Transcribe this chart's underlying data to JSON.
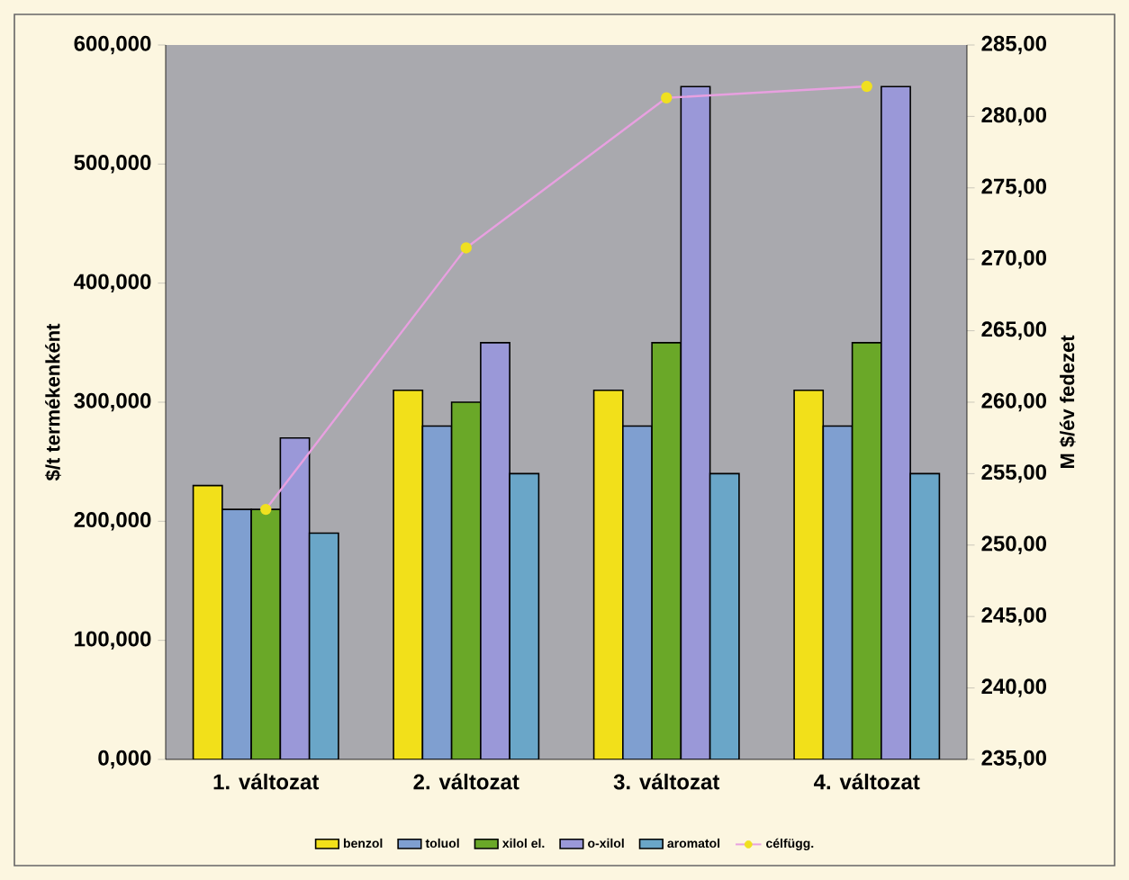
{
  "chart_data": {
    "type": "bar",
    "ylabel": "$/t termékenként",
    "y2label": "M $/év fedezet",
    "categories": [
      "1. változat",
      "2. változat",
      "3. változat",
      "4. változat"
    ],
    "series": [
      {
        "name": "benzol",
        "color": "#f2e01a",
        "values": [
          230,
          310,
          310,
          310
        ]
      },
      {
        "name": "toluol",
        "color": "#7f9fd0",
        "values": [
          210,
          280,
          280,
          280
        ]
      },
      {
        "name": "xilol el.",
        "color": "#6aa828",
        "values": [
          210,
          300,
          350,
          350
        ]
      },
      {
        "name": "o-xilol",
        "color": "#9a98d8",
        "values": [
          270,
          350,
          565,
          565
        ]
      },
      {
        "name": "aromatol",
        "color": "#6aa6c8",
        "values": [
          190,
          240,
          240,
          240
        ]
      },
      {
        "name": "célfügg.",
        "color": "#e8a0e0",
        "type": "line",
        "axis": "y2",
        "values": [
          252.5,
          270.8,
          281.3,
          282.1
        ]
      }
    ],
    "ylim": [
      0,
      600
    ],
    "yticks": [
      {
        "value": 0,
        "label": "0,000"
      },
      {
        "value": 100,
        "label": "100,000"
      },
      {
        "value": 200,
        "label": "200,000"
      },
      {
        "value": 300,
        "label": "300,000"
      },
      {
        "value": 400,
        "label": "400,000"
      },
      {
        "value": 500,
        "label": "500,000"
      },
      {
        "value": 600,
        "label": "600,000"
      }
    ],
    "y2lim": [
      235,
      285
    ],
    "y2ticks": [
      {
        "value": 235,
        "label": "235,00"
      },
      {
        "value": 240,
        "label": "240,00"
      },
      {
        "value": 245,
        "label": "245,00"
      },
      {
        "value": 250,
        "label": "250,00"
      },
      {
        "value": 255,
        "label": "255,00"
      },
      {
        "value": 260,
        "label": "260,00"
      },
      {
        "value": 265,
        "label": "265,00"
      },
      {
        "value": 270,
        "label": "270,00"
      },
      {
        "value": 275,
        "label": "275,00"
      },
      {
        "value": 280,
        "label": "280,00"
      },
      {
        "value": 285,
        "label": "285,00"
      }
    ],
    "legend": "bottom",
    "marker": "circle",
    "grid": false
  }
}
